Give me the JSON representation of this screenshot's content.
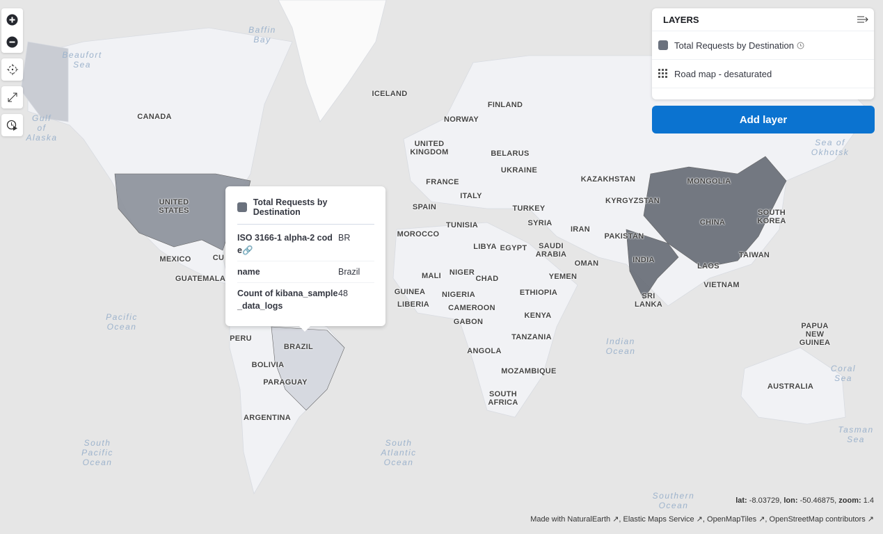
{
  "map_controls": {
    "zoom_in": "plus-icon",
    "zoom_out": "minus-icon",
    "locate": "crosshair-icon",
    "fullscreen": "expand-icon",
    "timeslider": "clock-play-icon"
  },
  "layers_panel": {
    "title": "LAYERS",
    "collapse_icon": "collapse-panel-icon",
    "layers": [
      {
        "name": "Total Requests by Destination",
        "icon": "swatch",
        "has_time": true
      },
      {
        "name": "Road map - desaturated",
        "icon": "grid-icon"
      }
    ],
    "add_layer_label": "Add layer"
  },
  "tooltip": {
    "title": "Total Requests by Destination",
    "rows": [
      {
        "key": "ISO 3166-1 alpha-2 code",
        "value": "BR",
        "link": true
      },
      {
        "key": "name",
        "value": "Brazil"
      },
      {
        "key": "Count of kibana_sample_data_logs",
        "value": "48"
      }
    ]
  },
  "coords": {
    "lat_label": "lat:",
    "lat": "-8.03729",
    "lon_label": "lon:",
    "lon": "-50.46875",
    "zoom_label": "zoom:",
    "zoom": "1.4"
  },
  "attribution": [
    "Made with NaturalEarth",
    "Elastic Maps Service",
    "OpenMapTiles",
    "OpenStreetMap contributors"
  ],
  "country_labels": [
    "CANADA",
    "UNITED STATES",
    "MEXICO",
    "CU",
    "GUATEMALA",
    "PERU",
    "BRAZIL",
    "BOLIVIA",
    "PARAGUAY",
    "ARGENTINA",
    "ICELAND",
    "FINLAND",
    "NORWAY",
    "UNITED KINGDOM",
    "BELARUS",
    "UKRAINE",
    "FRANCE",
    "ITALY",
    "SPAIN",
    "TURKEY",
    "SYRIA",
    "KAZAKHSTAN",
    "MONGOLIA",
    "KYRGYZSTAN",
    "CHINA",
    "SOUTH KOREA",
    "IRAN",
    "PAKISTAN",
    "INDIA",
    "SAUDI ARABIA",
    "OMAN",
    "YEMEN",
    "EGYPT",
    "LIBYA",
    "TUNISIA",
    "MOROCCO",
    "MALI",
    "NIGER",
    "CHAD",
    "NIGERIA",
    "GUINEA",
    "LIBERIA",
    "CAMEROON",
    "GABON",
    "ETHIOPIA",
    "KENYA",
    "TANZANIA",
    "ANGOLA",
    "MOZAMBIQUE",
    "SOUTH AFRICA",
    "LAOS",
    "VIETNAM",
    "TAIWAN",
    "SRI LANKA",
    "PAPUA NEW GUINEA",
    "AUSTRALIA"
  ],
  "sea_labels": [
    "Baffin Bay",
    "Beaufort Sea",
    "Gulf of Alaska",
    "Pacific Ocean",
    "South Pacific Ocean",
    "South Atlantic Ocean",
    "Indian Ocean",
    "Coral Sea",
    "Tasman Sea",
    "Sea of Okhotsk",
    "Southern Ocean"
  ],
  "colors": {
    "highlight": "#6a717d",
    "accent": "#0b73d0",
    "water": "#e6e6e6",
    "land": "#f1f2f5"
  }
}
